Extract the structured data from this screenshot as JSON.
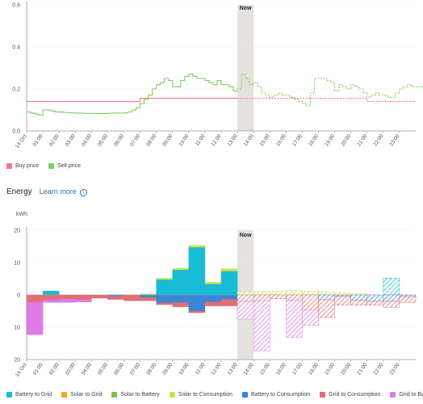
{
  "price_legend": {
    "buy": {
      "label": "Buy price",
      "color": "#f07a86"
    },
    "sell": {
      "label": "Sell price",
      "color": "#7fcf62"
    }
  },
  "energy_header": {
    "title": "Energy",
    "link": "Learn more",
    "icon": "info-icon"
  },
  "energy_legend": [
    {
      "label": "Battery to Grid",
      "color": "#19bcd6"
    },
    {
      "label": "Solar to Grid",
      "color": "#f5a623"
    },
    {
      "label": "Solar to Battery",
      "color": "#7cc24f"
    },
    {
      "label": "Solar to Consumption",
      "color": "#cbe34a"
    },
    {
      "label": "Battery to Consumption",
      "color": "#3a86d6"
    },
    {
      "label": "Grid to Consumption",
      "color": "#e26d73"
    },
    {
      "label": "Grid to Battery",
      "color": "#e07ae8"
    }
  ],
  "chart_data": [
    {
      "type": "line",
      "now_label": "Now",
      "now_x": [
        13,
        14
      ],
      "y_ticks": [
        "0.0",
        "0.2",
        "0.4",
        "0.6"
      ],
      "ylim": [
        0,
        0.6
      ],
      "xlim": [
        0,
        24
      ],
      "x_tick_labels": [
        "14 Oct",
        "01:00",
        "02:00",
        "03:00",
        "04:00",
        "05:00",
        "06:00",
        "07:00",
        "08:00",
        "09:00",
        "10:00",
        "11:00",
        "12:00",
        "13:00",
        "14:00",
        "15:00",
        "16:00",
        "17:00",
        "18:00",
        "19:00",
        "20:00",
        "21:00",
        "22:00",
        "23:00"
      ],
      "series": [
        {
          "key": "buy",
          "step": 0.5,
          "forecast_from": 13,
          "values": [
            0.14,
            0.14,
            0.14,
            0.14,
            0.14,
            0.14,
            0.14,
            0.14,
            0.14,
            0.14,
            0.14,
            0.14,
            0.14,
            0.14,
            0.155,
            0.155,
            0.155,
            0.155,
            0.155,
            0.155,
            0.155,
            0.155,
            0.155,
            0.155,
            0.155,
            0.155,
            0.155,
            0.155,
            0.155,
            0.155,
            0.155,
            0.155,
            0.155,
            0.155,
            0.155,
            0.155,
            0.155,
            0.155,
            0.155,
            0.155,
            0.155,
            0.155,
            0.14,
            0.14,
            0.14,
            0.14,
            0.14,
            0.14
          ]
        },
        {
          "key": "sell",
          "step": 0.25,
          "forecast_from": 13,
          "values": [
            0.09,
            0.085,
            0.08,
            0.075,
            0.1,
            0.1,
            0.095,
            0.09,
            0.09,
            0.088,
            0.087,
            0.086,
            0.085,
            0.085,
            0.084,
            0.083,
            0.083,
            0.083,
            0.083,
            0.083,
            0.084,
            0.085,
            0.085,
            0.085,
            0.086,
            0.09,
            0.1,
            0.11,
            0.13,
            0.15,
            0.17,
            0.2,
            0.22,
            0.23,
            0.25,
            0.24,
            0.21,
            0.21,
            0.24,
            0.26,
            0.27,
            0.26,
            0.25,
            0.25,
            0.24,
            0.23,
            0.22,
            0.24,
            0.22,
            0.22,
            0.21,
            0.19,
            0.2,
            0.27,
            0.25,
            0.22,
            0.23,
            0.21,
            0.18,
            0.17,
            0.16,
            0.17,
            0.18,
            0.17,
            0.17,
            0.16,
            0.15,
            0.14,
            0.13,
            0.12,
            0.18,
            0.25,
            0.25,
            0.25,
            0.24,
            0.23,
            0.19,
            0.22,
            0.21,
            0.2,
            0.22,
            0.21,
            0.2,
            0.18,
            0.16,
            0.17,
            0.18,
            0.17,
            0.17,
            0.16,
            0.16,
            0.18,
            0.2,
            0.21,
            0.22,
            0.21,
            0.21,
            0.21,
            0.23,
            0.25,
            0.24,
            0.28,
            0.29,
            0.31,
            0.26,
            0.27,
            0.36,
            0.42,
            0.4,
            0.3,
            0.33,
            0.4,
            0.47,
            0.52,
            0.55,
            0.57,
            0.55,
            0.52,
            0.5,
            0.44,
            0.42,
            0.4,
            0.32,
            0.27,
            0.24,
            0.22,
            0.21,
            0.2,
            0.17,
            0.16,
            0.14,
            0.15,
            0.15,
            0.14,
            0.14,
            0.13,
            0.13,
            0.13,
            0.12,
            0.12,
            0.11,
            0.1,
            0.09,
            0.09
          ]
        }
      ]
    },
    {
      "type": "bar",
      "now_label": "Now",
      "now_x": [
        13,
        14
      ],
      "ylabel": "kWh",
      "ylim": [
        -20,
        20
      ],
      "y_ticks": [
        20,
        10,
        0,
        10,
        20
      ],
      "xlim": [
        0,
        24
      ],
      "x_tick_labels": [
        "14 Oct",
        "01:00",
        "02:00",
        "03:00",
        "04:00",
        "05:00",
        "06:00",
        "07:00",
        "08:00",
        "09:00",
        "10:00",
        "11:00",
        "12:00",
        "13:00",
        "14:00",
        "15:00",
        "16:00",
        "17:00",
        "18:00",
        "19:00",
        "20:00",
        "21:00",
        "22:00",
        "23:00"
      ],
      "forecast_from": 13,
      "series": [
        {
          "name": "Battery to Grid",
          "values": [
            0,
            1.2,
            0,
            0,
            0,
            0,
            0,
            0,
            4.8,
            7.8,
            14.8,
            3.4,
            7.4,
            0,
            0,
            0,
            0,
            0,
            0,
            0,
            0,
            0,
            5.2,
            0
          ]
        },
        {
          "name": "Solar to Grid",
          "values": [
            0,
            0,
            0,
            0,
            0,
            0,
            0,
            0,
            0,
            0,
            0,
            0,
            0,
            0,
            0,
            0,
            0,
            0,
            0,
            0,
            0,
            0,
            0,
            0
          ]
        },
        {
          "name": "Solar to Battery",
          "values": [
            0,
            0,
            0,
            0,
            0,
            0,
            0,
            0,
            0,
            0,
            0,
            0,
            0,
            0,
            0,
            0,
            0,
            0,
            0,
            0,
            0,
            0,
            0,
            0
          ]
        },
        {
          "name": "Solar to Consumption",
          "values": [
            0,
            0,
            0,
            0,
            0,
            0,
            0,
            0.3,
            0.4,
            0.4,
            0.5,
            0.5,
            0.7,
            0.9,
            1,
            1.2,
            1.3,
            1.2,
            0.8,
            0.6,
            0.3,
            0,
            0,
            0
          ]
        },
        {
          "name": "Battery to Consumption",
          "values": [
            0,
            0,
            0,
            0,
            0,
            -0.4,
            0,
            -0.8,
            -2.5,
            -2.4,
            -5,
            -2.2,
            -1.4,
            0,
            0,
            0,
            0,
            0,
            -1.5,
            -0.4,
            -1.6,
            -2,
            -2,
            -0.5
          ]
        },
        {
          "name": "Grid to Consumption",
          "values": [
            -2.3,
            -1.5,
            -1.3,
            -1.5,
            -1,
            -1,
            -1.8,
            -1,
            -0.5,
            -1.3,
            -0.5,
            -1.2,
            -2,
            -2,
            -1.8,
            -1.2,
            -1.6,
            -4.7,
            -5.5,
            -2.8,
            -1.5,
            -1.2,
            -1.8,
            -1.8
          ]
        },
        {
          "name": "Grid to Battery",
          "values": [
            -10,
            -0.8,
            -1,
            -0.7,
            0,
            0,
            0,
            0,
            0,
            0,
            0,
            0,
            0,
            -5.5,
            -15.5,
            0,
            -11.5,
            -4.7,
            0,
            0,
            0,
            0,
            0,
            0
          ]
        }
      ]
    }
  ]
}
